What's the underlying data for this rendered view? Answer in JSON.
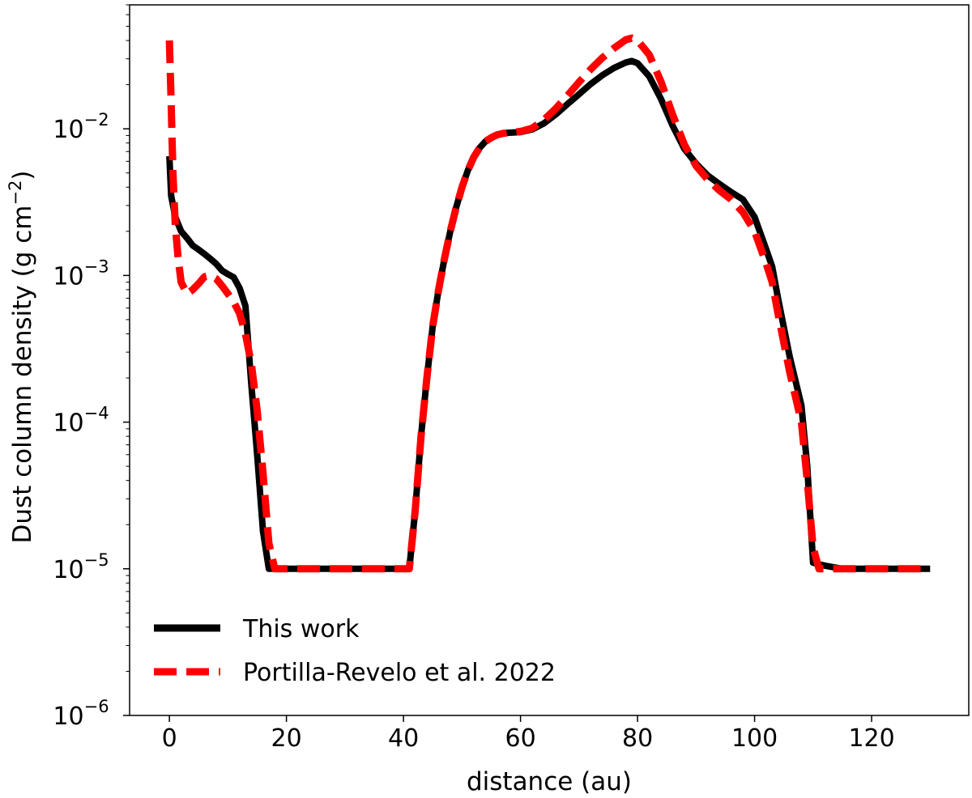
{
  "chart_data": {
    "type": "line",
    "title": "",
    "xlabel": "distance (au)",
    "ylabel": "Dust column density (g cm⁻²)",
    "ylabel_parts": {
      "main": "Dust column density (g cm",
      "sup": "−2",
      "close": ")"
    },
    "yscale": "log",
    "xlim": [
      -6.8,
      136.6
    ],
    "ylim": [
      1e-06,
      0.07
    ],
    "xticks": [
      0,
      20,
      40,
      60,
      80,
      100,
      120
    ],
    "xtick_labels": [
      "0",
      "20",
      "40",
      "60",
      "80",
      "100",
      "120"
    ],
    "yticks": [
      1e-06,
      1e-05,
      0.0001,
      0.001,
      0.01
    ],
    "ytick_labels": [
      {
        "base": "10",
        "exp": "−6"
      },
      {
        "base": "10",
        "exp": "−5"
      },
      {
        "base": "10",
        "exp": "−4"
      },
      {
        "base": "10",
        "exp": "−3"
      },
      {
        "base": "10",
        "exp": "−2"
      }
    ],
    "grid": false,
    "legend_position": "lower-left",
    "series": [
      {
        "name": "This work",
        "color": "#000000",
        "style": "solid",
        "x": [
          0,
          0.3,
          1,
          2,
          3,
          4,
          5,
          6,
          7,
          8,
          9,
          10,
          11,
          12,
          13,
          14,
          15,
          16,
          17,
          18,
          20,
          25,
          30,
          35,
          40,
          41,
          42,
          43,
          44,
          45,
          46,
          47,
          48,
          49,
          50,
          51,
          52,
          53,
          54,
          55,
          56,
          57,
          58,
          60,
          62,
          64,
          66,
          68,
          70,
          72,
          74,
          76,
          78,
          79,
          80,
          82,
          84,
          86,
          88,
          90,
          92,
          94,
          96,
          98,
          100,
          102,
          103,
          104,
          106,
          108,
          109,
          110,
          112,
          115,
          120,
          125,
          130
        ],
        "y": [
          0.0065,
          0.0035,
          0.0025,
          0.002,
          0.0018,
          0.0016,
          0.0015,
          0.0014,
          0.0013,
          0.0012,
          0.00108,
          0.00102,
          0.00097,
          0.00082,
          0.00062,
          0.00018,
          6e-05,
          1.8e-05,
          1e-05,
          1e-05,
          1e-05,
          1e-05,
          1e-05,
          1e-05,
          1e-05,
          1e-05,
          2.5e-05,
          8e-05,
          0.0002,
          0.00045,
          0.0008,
          0.0013,
          0.002,
          0.0029,
          0.004,
          0.0052,
          0.0064,
          0.0074,
          0.0082,
          0.0087,
          0.0091,
          0.0093,
          0.0094,
          0.0095,
          0.0099,
          0.0109,
          0.0125,
          0.0147,
          0.0172,
          0.0202,
          0.0232,
          0.026,
          0.0283,
          0.029,
          0.028,
          0.0228,
          0.016,
          0.0105,
          0.0073,
          0.0058,
          0.0048,
          0.0042,
          0.0037,
          0.0033,
          0.0025,
          0.0015,
          0.00115,
          0.0007,
          0.00028,
          0.00013,
          5e-05,
          1.1e-05,
          1.05e-05,
          1e-05,
          1e-05,
          1e-05,
          1e-05
        ]
      },
      {
        "name": "Portilla-Revelo et al. 2022",
        "color": "#ff0000",
        "style": "dashed",
        "x": [
          0,
          0.3,
          0.6,
          1,
          1.5,
          2,
          3,
          4,
          5,
          6,
          7,
          8,
          9,
          10,
          11,
          12,
          13,
          14,
          15,
          16,
          17,
          18,
          20,
          25,
          30,
          35,
          40,
          41,
          42,
          43,
          44,
          45,
          46,
          47,
          48,
          49,
          50,
          51,
          52,
          53,
          54,
          55,
          56,
          57,
          58,
          60,
          62,
          64,
          66,
          68,
          70,
          72,
          74,
          76,
          78,
          79,
          80,
          82,
          84,
          86,
          88,
          90,
          92,
          94,
          96,
          98,
          100,
          102,
          103,
          104,
          106,
          108,
          109,
          110,
          111,
          112,
          115,
          120,
          125,
          130
        ],
        "y": [
          0.04,
          0.015,
          0.005,
          0.0022,
          0.0013,
          0.0009,
          0.00075,
          0.0008,
          0.00088,
          0.00098,
          0.001,
          0.00095,
          0.00085,
          0.00075,
          0.00066,
          0.00055,
          0.0004,
          0.00025,
          0.00012,
          4.5e-05,
          1.5e-05,
          1e-05,
          1e-05,
          1e-05,
          1e-05,
          1e-05,
          1e-05,
          1e-05,
          2.5e-05,
          8e-05,
          0.0002,
          0.00045,
          0.0008,
          0.0013,
          0.002,
          0.0029,
          0.004,
          0.0052,
          0.0064,
          0.0074,
          0.0082,
          0.0087,
          0.0091,
          0.0093,
          0.0094,
          0.0096,
          0.0101,
          0.0115,
          0.0137,
          0.0168,
          0.0208,
          0.0255,
          0.0305,
          0.0355,
          0.0405,
          0.0415,
          0.04,
          0.032,
          0.021,
          0.0125,
          0.0078,
          0.0056,
          0.0045,
          0.0038,
          0.0033,
          0.0027,
          0.002,
          0.0012,
          0.0009,
          0.00055,
          0.00022,
          0.0001,
          4e-05,
          1.4e-05,
          1e-05,
          1e-05,
          1e-05,
          1e-05,
          1e-05,
          1e-05
        ]
      }
    ]
  }
}
